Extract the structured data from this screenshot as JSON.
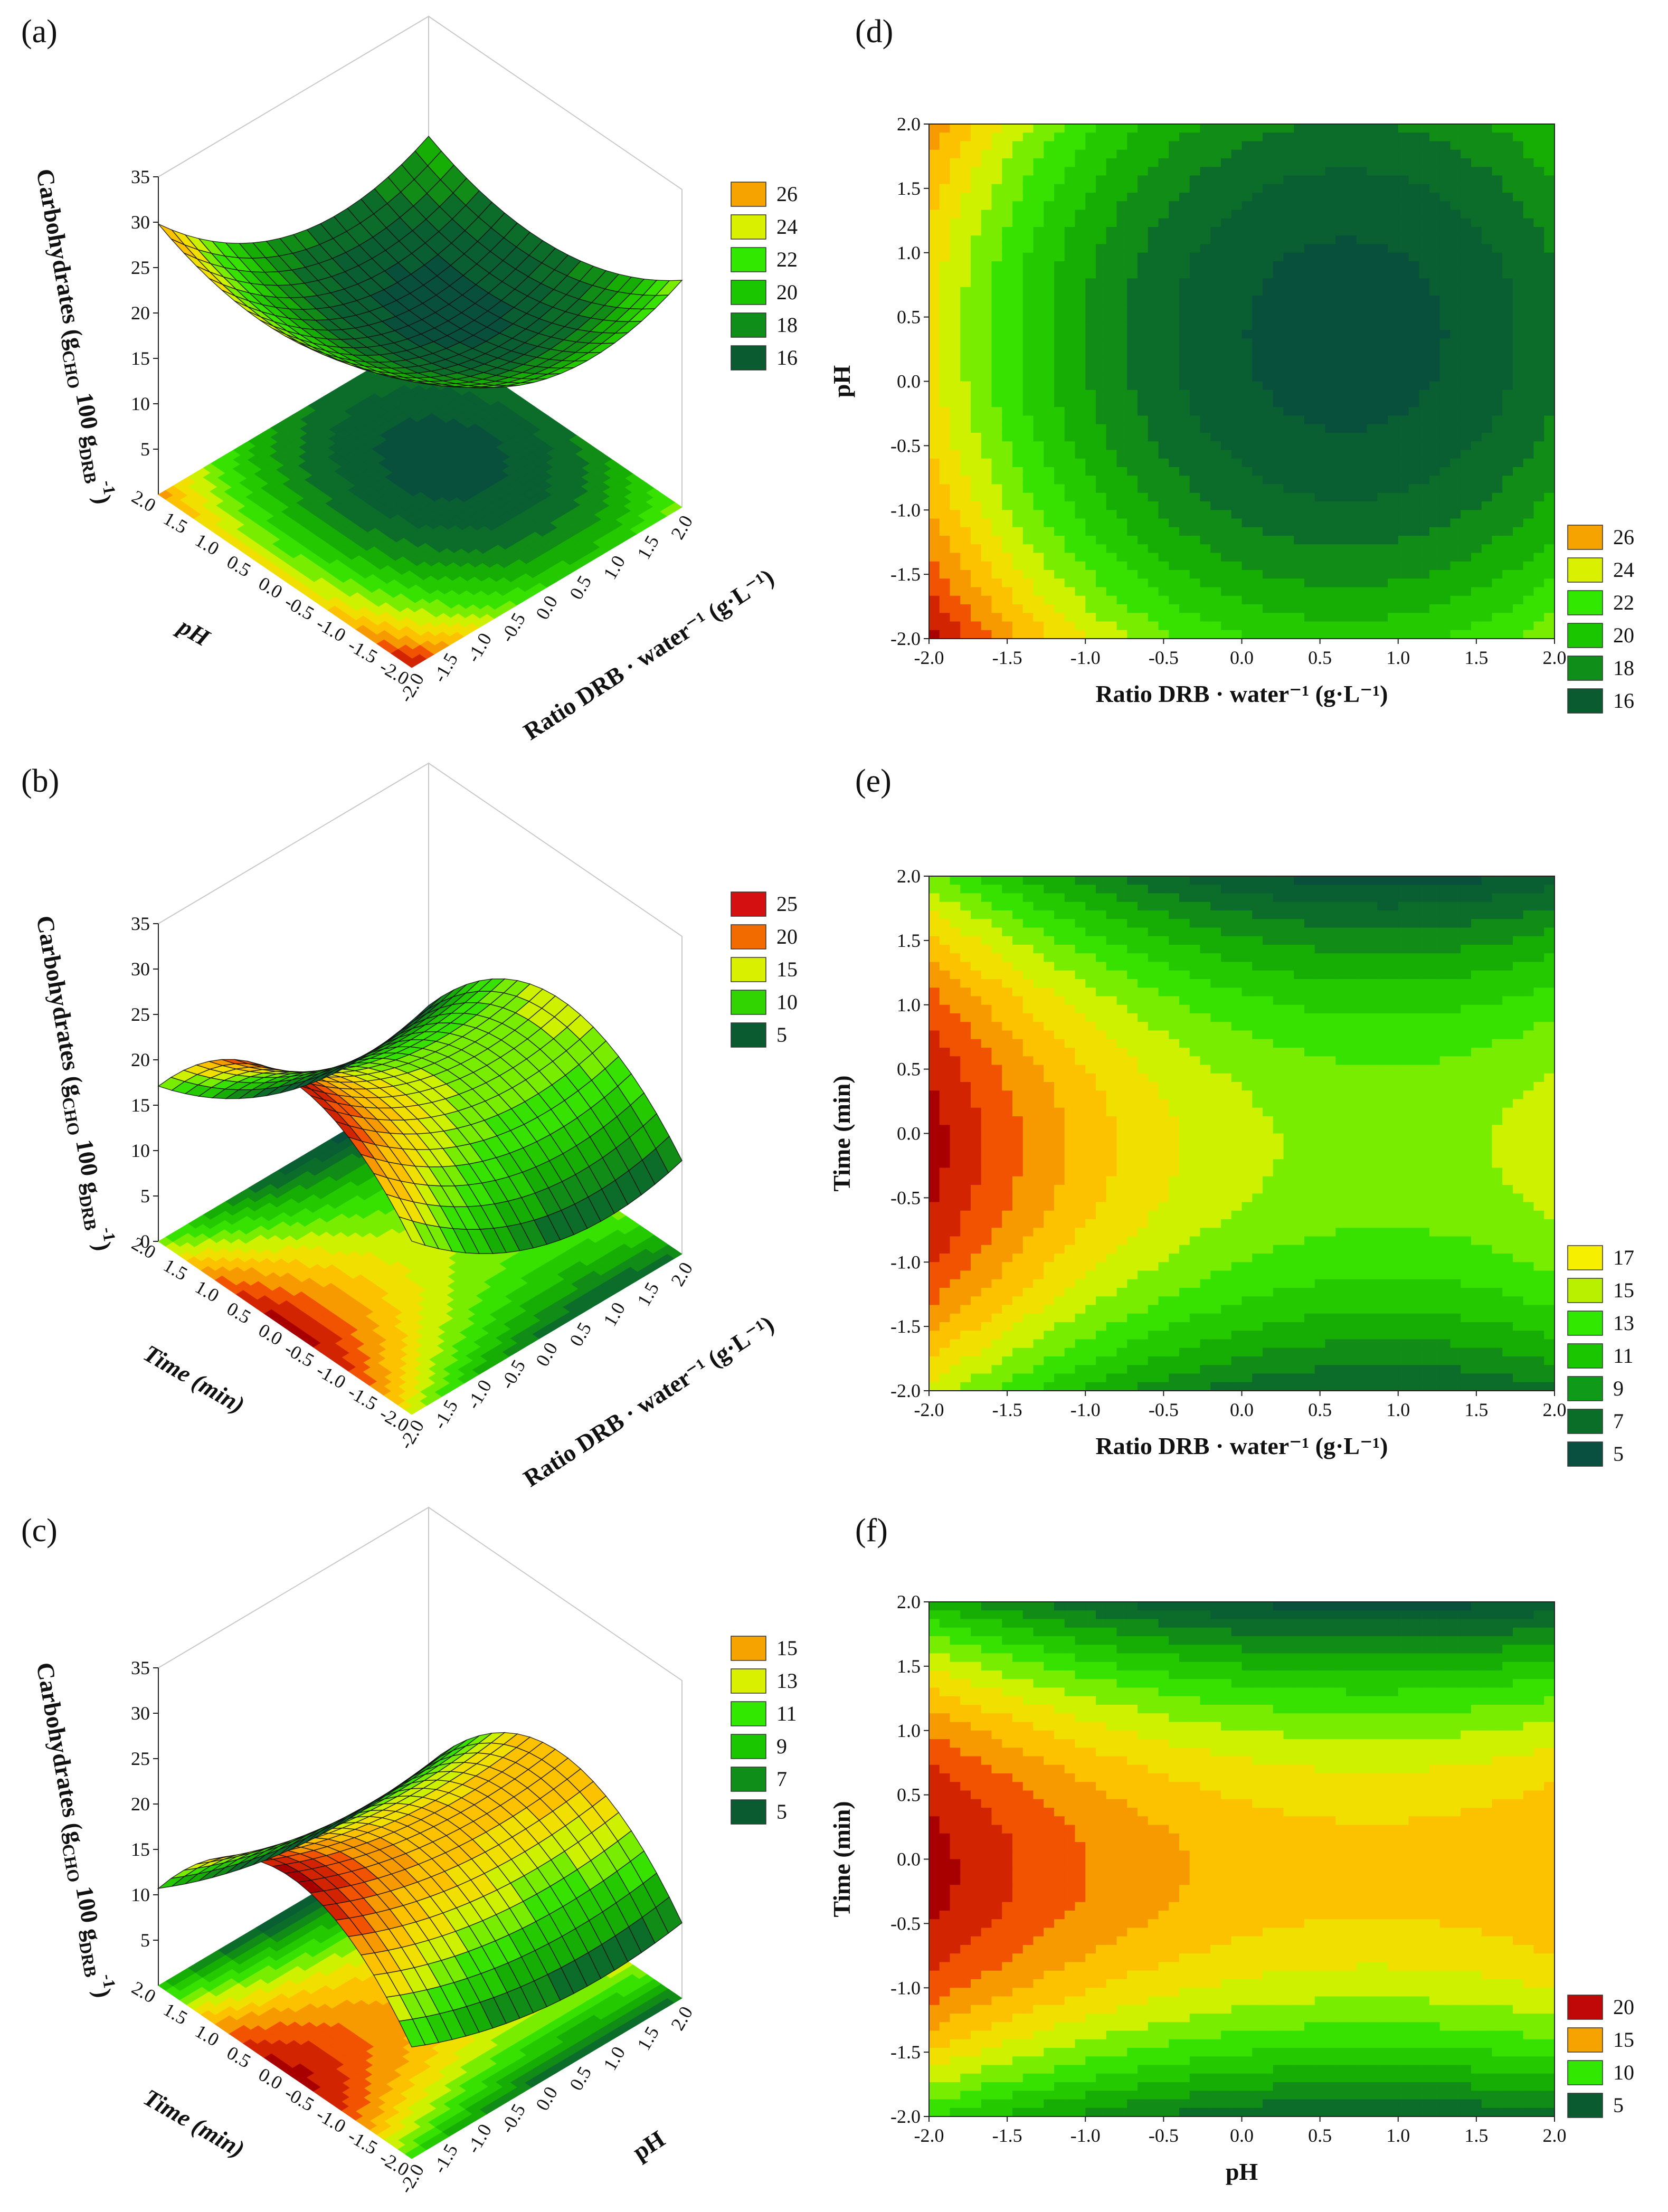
{
  "figure": {
    "panel_labels": [
      "(a)",
      "(b)",
      "(c)",
      "(d)",
      "(e)",
      "(f)"
    ]
  },
  "chart_data": [
    {
      "id": "a",
      "type": "surface3d",
      "panel_label": "(a)",
      "xlabel": "Ratio DRB · water⁻¹ (g·L⁻¹)",
      "ylabel": "pH",
      "zlabel": "Carbohydrates (g_CHO · 100 g_DRB⁻¹)",
      "zlabel_parts": [
        "Carbohydrates (g",
        "CHO",
        " 100 g",
        "DRB",
        "-1",
        ")"
      ],
      "xlim": [
        -2.0,
        2.0
      ],
      "ylim": [
        -2.0,
        2.0
      ],
      "zlim": [
        0,
        35
      ],
      "xticks": [
        "2.0",
        "1.5",
        "1.0",
        "0.5",
        "0.0",
        "-0.5",
        "-1.0",
        "-1.5",
        "-2.0"
      ],
      "yticks": [
        "2.0",
        "1.5",
        "1.0",
        "0.5",
        "0.0",
        "-0.5",
        "-1.0",
        "-1.5",
        "-2.0"
      ],
      "zticks": [
        "35",
        "30",
        "25",
        "20",
        "15",
        "10",
        "5"
      ],
      "legend": [
        "26",
        "24",
        "22",
        "20",
        "18",
        "16"
      ],
      "legend_colors": [
        "#f6a300",
        "#d9f000",
        "#31e800",
        "#19c600",
        "#0f8f1a",
        "#0a5c30"
      ],
      "model": {
        "c": 17.0,
        "x": -2.0,
        "y": -0.8,
        "xx": 1.5,
        "yy": 1.1,
        "xy": 0.0
      },
      "surface_grid": 20
    },
    {
      "id": "b",
      "type": "surface3d",
      "panel_label": "(b)",
      "xlabel": "Ratio DRB · water⁻¹ (g·L⁻¹)",
      "ylabel": "Time (min)",
      "zlabel": "Carbohydrates (g_CHO · 100 g_DRB⁻¹)",
      "zlabel_parts": [
        "Carbohydrates (g",
        "CHO",
        " 100 g",
        "DRB",
        "-1",
        ")"
      ],
      "xlim": [
        -2.0,
        2.0
      ],
      "ylim": [
        -2.0,
        2.0
      ],
      "zlim": [
        0,
        35
      ],
      "xticks": [
        "2.0",
        "1.5",
        "1.0",
        "0.5",
        "0.0",
        "-0.5",
        "-1.0",
        "-1.5",
        "-2.0"
      ],
      "yticks": [
        "2.0",
        "1.5",
        "1.0",
        "0.5",
        "0.0",
        "-0.5",
        "-1.0",
        "-1.5",
        "-2.0"
      ],
      "zticks": [
        "35",
        "30",
        "25",
        "20",
        "15",
        "10",
        "5",
        "0"
      ],
      "legend": [
        "25",
        "20",
        "15",
        "10",
        "5"
      ],
      "legend_colors": [
        "#d41010",
        "#f26b00",
        "#d9f000",
        "#31d400",
        "#0a5c30"
      ],
      "model": {
        "c": 16.5,
        "x": -2.2,
        "y": -0.5,
        "xx": 1.2,
        "yy": -2.4,
        "xy": 0.0
      },
      "surface_grid": 20
    },
    {
      "id": "c",
      "type": "surface3d",
      "panel_label": "(c)",
      "xlabel": "pH",
      "ylabel": "Time (min)",
      "zlabel": "Carbohydrates (g_CHO · 100 g_DRB⁻¹)",
      "zlabel_parts": [
        "Carbohydrates (g",
        "CHO",
        " 100 g",
        "DRB",
        "-1",
        ")"
      ],
      "xlim": [
        -2.0,
        2.0
      ],
      "ylim": [
        -2.0,
        2.0
      ],
      "zlim": [
        0,
        35
      ],
      "xticks": [
        "2.0",
        "1.5",
        "1.0",
        "0.5",
        "0.0",
        "-0.5",
        "-1.0",
        "-1.5",
        "-2.0"
      ],
      "yticks": [
        "2.0",
        "1.5",
        "1.0",
        "0.5",
        "0.0",
        "-0.5",
        "-1.0",
        "-1.5",
        "-2.0"
      ],
      "zticks": [
        "35",
        "30",
        "25",
        "20",
        "15",
        "10",
        "5"
      ],
      "legend": [
        "15",
        "13",
        "11",
        "9",
        "7",
        "5"
      ],
      "legend_colors": [
        "#f6a300",
        "#d9f000",
        "#31e800",
        "#19c600",
        "#0f8f1a",
        "#0a5c30"
      ],
      "model": {
        "c": 17.5,
        "x": -1.0,
        "y": -0.4,
        "xx": 0.6,
        "yy": -2.6,
        "xy": 0.0
      },
      "surface_grid": 20
    },
    {
      "id": "d",
      "type": "contour",
      "panel_label": "(d)",
      "xlabel": "Ratio DRB · water⁻¹ (g·L⁻¹)",
      "ylabel": "pH",
      "xlim": [
        -2.0,
        2.0
      ],
      "ylim": [
        -2.0,
        2.0
      ],
      "xticks": [
        "-2.0",
        "-1.5",
        "-1.0",
        "-0.5",
        "0.0",
        "0.5",
        "1.0",
        "1.5",
        "2.0"
      ],
      "yticks": [
        "2.0",
        "1.5",
        "1.0",
        "0.5",
        "0.0",
        "-0.5",
        "-1.0",
        "-1.5",
        "-2.0"
      ],
      "legend": [
        "26",
        "24",
        "22",
        "20",
        "18",
        "16"
      ],
      "legend_colors": [
        "#f6a300",
        "#d9f000",
        "#31e800",
        "#19c600",
        "#0f8f1a",
        "#0a5c30"
      ],
      "model": {
        "c": 17.0,
        "x": -2.0,
        "y": -0.8,
        "xx": 1.5,
        "yy": 1.1,
        "xy": 0.0
      }
    },
    {
      "id": "e",
      "type": "contour",
      "panel_label": "(e)",
      "xlabel": "Ratio DRB · water⁻¹ (g·L⁻¹)",
      "ylabel": "Time (min)",
      "xlim": [
        -2.0,
        2.0
      ],
      "ylim": [
        -2.0,
        2.0
      ],
      "xticks": [
        "-2.0",
        "-1.5",
        "-1.0",
        "-0.5",
        "0.0",
        "0.5",
        "1.0",
        "1.5",
        "2.0"
      ],
      "yticks": [
        "2.0",
        "1.5",
        "1.0",
        "0.5",
        "0.0",
        "-0.5",
        "-1.0",
        "-1.5",
        "-2.0"
      ],
      "legend": [
        "17",
        "15",
        "13",
        "11",
        "9",
        "7",
        "5"
      ],
      "legend_colors": [
        "#f6f000",
        "#b8f000",
        "#31e800",
        "#19c600",
        "#0f9a1a",
        "#0b6e28",
        "#0a5040"
      ],
      "model": {
        "c": 16.5,
        "x": -2.2,
        "y": -0.5,
        "xx": 1.2,
        "yy": -2.4,
        "xy": 0.0
      }
    },
    {
      "id": "f",
      "type": "contour",
      "panel_label": "(f)",
      "xlabel": "pH",
      "ylabel": "Time (min)",
      "xlim": [
        -2.0,
        2.0
      ],
      "ylim": [
        -2.0,
        2.0
      ],
      "xticks": [
        "-2.0",
        "-1.5",
        "-1.0",
        "-0.5",
        "0.0",
        "0.5",
        "1.0",
        "1.5",
        "2.0"
      ],
      "yticks": [
        "2.0",
        "1.5",
        "1.0",
        "0.5",
        "0.0",
        "-0.5",
        "-1.0",
        "-1.5",
        "-2.0"
      ],
      "legend": [
        "20",
        "15",
        "10",
        "5"
      ],
      "legend_colors": [
        "#c00808",
        "#f6a300",
        "#31e800",
        "#0a5c30"
      ],
      "model": {
        "c": 17.5,
        "x": -1.0,
        "y": -0.4,
        "xx": 0.6,
        "yy": -2.6,
        "xy": 0.0
      }
    }
  ]
}
